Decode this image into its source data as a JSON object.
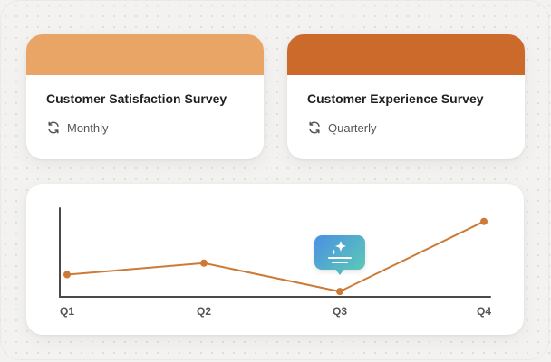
{
  "colors": {
    "card_1_band": "#e8a565",
    "card_2_band": "#cc6a2c",
    "line": "#cc7a35",
    "axis": "#4a4a4a"
  },
  "cards": [
    {
      "title": "Customer Satisfaction Survey",
      "frequency": "Monthly",
      "icon": "refresh-icon"
    },
    {
      "title": "Customer Experience Survey",
      "frequency": "Quarterly",
      "icon": "refresh-icon"
    }
  ],
  "ai_badge": {
    "icon": "sparkle-lines-icon"
  },
  "chart_data": {
    "type": "line",
    "categories": [
      "Q1",
      "Q2",
      "Q3",
      "Q4"
    ],
    "series": [
      {
        "values": [
          0.25,
          0.38,
          0.06,
          0.85
        ]
      }
    ],
    "ylim": [
      0,
      1
    ],
    "grid": false,
    "y_ticks_shown": false
  }
}
